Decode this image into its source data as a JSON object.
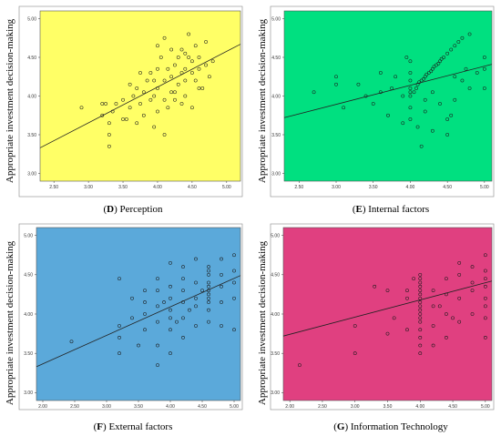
{
  "figure": {
    "panels": [
      {
        "letter": "D",
        "caption": "Perception",
        "bg": "#ffff66"
      },
      {
        "letter": "E",
        "caption": "Internal factors",
        "bg": "#00e080"
      },
      {
        "letter": "F",
        "caption": "External factors",
        "bg": "#5ba9da"
      },
      {
        "letter": "G",
        "caption": "Information Technology",
        "bg": "#e04080"
      }
    ]
  },
  "chart_data": [
    {
      "type": "scatter",
      "title": "(D) Perception",
      "xlabel": "",
      "ylabel": "Appropriate investment decision-making",
      "xlim": [
        2.3,
        5.2
      ],
      "ylim": [
        2.9,
        5.1
      ],
      "xticks": [
        "2.50",
        "3.00",
        "3.50",
        "4.00",
        "4.50",
        "5.00"
      ],
      "yticks": [
        "3.00",
        "3.50",
        "4.00",
        "4.50",
        "5.00"
      ],
      "grid": false,
      "fit_line": {
        "x": [
          2.3,
          5.2
        ],
        "y": [
          3.33,
          4.67
        ]
      },
      "points": [
        [
          2.9,
          3.85
        ],
        [
          3.2,
          3.75
        ],
        [
          3.2,
          3.9
        ],
        [
          3.25,
          3.9
        ],
        [
          3.3,
          3.35
        ],
        [
          3.3,
          3.5
        ],
        [
          3.3,
          3.65
        ],
        [
          3.35,
          3.8
        ],
        [
          3.4,
          3.9
        ],
        [
          3.5,
          3.7
        ],
        [
          3.5,
          3.95
        ],
        [
          3.55,
          3.7
        ],
        [
          3.6,
          3.85
        ],
        [
          3.65,
          4.0
        ],
        [
          3.7,
          3.65
        ],
        [
          3.7,
          4.1
        ],
        [
          3.75,
          3.9
        ],
        [
          3.8,
          3.75
        ],
        [
          3.8,
          4.05
        ],
        [
          3.85,
          4.2
        ],
        [
          3.9,
          3.95
        ],
        [
          3.9,
          4.3
        ],
        [
          3.95,
          3.6
        ],
        [
          3.95,
          4.0
        ],
        [
          4.0,
          3.8
        ],
        [
          4.0,
          4.1
        ],
        [
          4.0,
          4.35
        ],
        [
          4.05,
          4.5
        ],
        [
          4.1,
          3.5
        ],
        [
          4.1,
          3.95
        ],
        [
          4.1,
          4.2
        ],
        [
          4.15,
          3.85
        ],
        [
          4.15,
          4.35
        ],
        [
          4.2,
          4.05
        ],
        [
          4.2,
          4.25
        ],
        [
          4.25,
          3.95
        ],
        [
          4.25,
          4.4
        ],
        [
          4.3,
          4.15
        ],
        [
          4.3,
          4.5
        ],
        [
          4.35,
          3.9
        ],
        [
          4.35,
          4.3
        ],
        [
          4.35,
          4.6
        ],
        [
          4.4,
          4.0
        ],
        [
          4.4,
          4.2
        ],
        [
          4.4,
          4.35
        ],
        [
          4.45,
          4.5
        ],
        [
          4.5,
          3.85
        ],
        [
          4.5,
          4.3
        ],
        [
          4.5,
          4.45
        ],
        [
          4.55,
          4.2
        ],
        [
          4.55,
          4.65
        ],
        [
          4.6,
          4.35
        ],
        [
          4.6,
          4.5
        ],
        [
          4.65,
          4.1
        ],
        [
          4.7,
          4.4
        ],
        [
          4.7,
          4.7
        ],
        [
          4.75,
          4.25
        ],
        [
          4.8,
          4.45
        ],
        [
          3.6,
          4.15
        ],
        [
          3.75,
          4.3
        ],
        [
          4.0,
          4.65
        ],
        [
          4.1,
          4.75
        ],
        [
          4.45,
          4.8
        ],
        [
          4.2,
          4.6
        ],
        [
          4.6,
          4.1
        ],
        [
          3.95,
          4.2
        ],
        [
          4.25,
          4.05
        ],
        [
          4.4,
          4.55
        ]
      ]
    },
    {
      "type": "scatter",
      "title": "(E) Internal factors",
      "xlabel": "",
      "ylabel": "Appropriate investment decision-making",
      "xlim": [
        2.3,
        5.1
      ],
      "ylim": [
        2.9,
        5.1
      ],
      "xticks": [
        "2.50",
        "3.00",
        "3.50",
        "4.00",
        "4.50",
        "5.00"
      ],
      "yticks": [
        "3.00",
        "3.50",
        "4.00",
        "4.50",
        "5.00"
      ],
      "grid": false,
      "fit_line": {
        "x": [
          2.3,
          5.1
        ],
        "y": [
          3.72,
          4.41
        ]
      },
      "points": [
        [
          2.7,
          4.05
        ],
        [
          3.0,
          4.15
        ],
        [
          3.0,
          4.25
        ],
        [
          3.1,
          3.85
        ],
        [
          3.3,
          4.15
        ],
        [
          3.4,
          4.0
        ],
        [
          3.5,
          3.9
        ],
        [
          3.6,
          4.05
        ],
        [
          3.6,
          4.3
        ],
        [
          3.7,
          3.75
        ],
        [
          3.75,
          4.1
        ],
        [
          3.8,
          4.25
        ],
        [
          3.9,
          3.65
        ],
        [
          3.9,
          4.0
        ],
        [
          3.95,
          4.5
        ],
        [
          4.0,
          3.7
        ],
        [
          4.0,
          3.85
        ],
        [
          4.0,
          4.0
        ],
        [
          4.0,
          4.05
        ],
        [
          4.0,
          4.1
        ],
        [
          4.0,
          4.2
        ],
        [
          4.0,
          4.3
        ],
        [
          4.0,
          4.45
        ],
        [
          4.05,
          4.05
        ],
        [
          4.08,
          4.1
        ],
        [
          4.1,
          4.15
        ],
        [
          4.12,
          4.18
        ],
        [
          4.15,
          4.2
        ],
        [
          4.18,
          4.22
        ],
        [
          4.2,
          4.25
        ],
        [
          4.22,
          4.28
        ],
        [
          4.25,
          4.3
        ],
        [
          4.28,
          4.32
        ],
        [
          4.3,
          4.35
        ],
        [
          4.32,
          4.38
        ],
        [
          4.35,
          4.4
        ],
        [
          4.38,
          4.42
        ],
        [
          4.4,
          4.45
        ],
        [
          4.42,
          4.48
        ],
        [
          4.45,
          4.5
        ],
        [
          4.5,
          4.55
        ],
        [
          4.55,
          4.6
        ],
        [
          4.6,
          4.65
        ],
        [
          4.65,
          4.7
        ],
        [
          4.7,
          4.75
        ],
        [
          4.8,
          4.8
        ],
        [
          4.15,
          3.35
        ],
        [
          4.1,
          3.6
        ],
        [
          4.2,
          3.8
        ],
        [
          4.3,
          3.55
        ],
        [
          4.4,
          3.9
        ],
        [
          4.5,
          3.7
        ],
        [
          4.55,
          3.75
        ],
        [
          4.5,
          3.5
        ],
        [
          4.6,
          3.95
        ],
        [
          4.6,
          4.25
        ],
        [
          4.7,
          4.2
        ],
        [
          4.75,
          4.35
        ],
        [
          4.9,
          4.3
        ],
        [
          5.0,
          4.1
        ],
        [
          5.0,
          4.35
        ],
        [
          5.0,
          4.5
        ],
        [
          4.8,
          4.1
        ],
        [
          4.3,
          4.05
        ],
        [
          4.2,
          3.95
        ]
      ]
    },
    {
      "type": "scatter",
      "title": "(F) External factors",
      "xlabel": "",
      "ylabel": "Appropriate investment decision-making",
      "xlim": [
        1.9,
        5.1
      ],
      "ylim": [
        2.9,
        5.1
      ],
      "xticks": [
        "2.00",
        "2.50",
        "3.00",
        "3.50",
        "4.00",
        "4.50",
        "5.00"
      ],
      "yticks": [
        "3.00",
        "3.50",
        "4.00",
        "4.50",
        "5.00"
      ],
      "grid": false,
      "fit_line": {
        "x": [
          1.9,
          5.1
        ],
        "y": [
          3.33,
          4.49
        ]
      },
      "points": [
        [
          2.45,
          3.65
        ],
        [
          3.2,
          3.5
        ],
        [
          3.2,
          3.7
        ],
        [
          3.2,
          3.85
        ],
        [
          3.2,
          4.45
        ],
        [
          3.4,
          3.95
        ],
        [
          3.5,
          3.6
        ],
        [
          3.6,
          3.8
        ],
        [
          3.6,
          4.0
        ],
        [
          3.6,
          4.15
        ],
        [
          3.8,
          3.35
        ],
        [
          3.8,
          3.6
        ],
        [
          3.8,
          3.9
        ],
        [
          3.8,
          4.1
        ],
        [
          3.8,
          4.3
        ],
        [
          3.8,
          4.45
        ],
        [
          4.0,
          3.5
        ],
        [
          4.0,
          3.8
        ],
        [
          4.0,
          3.95
        ],
        [
          4.0,
          4.05
        ],
        [
          4.0,
          4.2
        ],
        [
          4.0,
          4.35
        ],
        [
          4.0,
          4.65
        ],
        [
          4.2,
          3.7
        ],
        [
          4.2,
          3.95
        ],
        [
          4.2,
          4.15
        ],
        [
          4.2,
          4.3
        ],
        [
          4.2,
          4.45
        ],
        [
          4.4,
          3.85
        ],
        [
          4.4,
          4.1
        ],
        [
          4.4,
          4.2
        ],
        [
          4.4,
          4.4
        ],
        [
          4.6,
          3.9
        ],
        [
          4.6,
          4.05
        ],
        [
          4.6,
          4.15
        ],
        [
          4.6,
          4.2
        ],
        [
          4.6,
          4.25
        ],
        [
          4.6,
          4.3
        ],
        [
          4.6,
          4.35
        ],
        [
          4.6,
          4.4
        ],
        [
          4.6,
          4.5
        ],
        [
          4.6,
          4.55
        ],
        [
          4.6,
          4.6
        ],
        [
          4.8,
          3.85
        ],
        [
          4.8,
          4.15
        ],
        [
          4.8,
          4.35
        ],
        [
          4.8,
          4.5
        ],
        [
          5.0,
          3.8
        ],
        [
          5.0,
          4.2
        ],
        [
          5.0,
          4.4
        ],
        [
          5.0,
          4.55
        ],
        [
          5.0,
          4.75
        ],
        [
          3.4,
          4.2
        ],
        [
          3.6,
          4.3
        ],
        [
          4.2,
          4.6
        ],
        [
          4.4,
          4.7
        ],
        [
          4.8,
          4.7
        ],
        [
          3.9,
          4.15
        ],
        [
          4.1,
          3.9
        ],
        [
          4.3,
          4.05
        ],
        [
          4.5,
          4.3
        ]
      ]
    },
    {
      "type": "scatter",
      "title": "(G) Information Technology",
      "xlabel": "",
      "ylabel": "Appropriate investment decision-making",
      "xlim": [
        1.9,
        5.1
      ],
      "ylim": [
        2.9,
        5.1
      ],
      "xticks": [
        "2.00",
        "2.50",
        "3.00",
        "3.50",
        "4.00",
        "4.50",
        "5.00"
      ],
      "yticks": [
        "3.00",
        "3.50",
        "4.00",
        "4.50",
        "5.00"
      ],
      "grid": false,
      "fit_line": {
        "x": [
          1.9,
          5.1
        ],
        "y": [
          3.72,
          4.42
        ]
      },
      "points": [
        [
          2.15,
          3.35
        ],
        [
          3.0,
          3.5
        ],
        [
          3.0,
          3.85
        ],
        [
          3.3,
          4.35
        ],
        [
          3.5,
          3.75
        ],
        [
          3.6,
          3.95
        ],
        [
          3.8,
          3.8
        ],
        [
          3.8,
          4.2
        ],
        [
          3.8,
          4.3
        ],
        [
          4.0,
          3.5
        ],
        [
          4.0,
          3.6
        ],
        [
          4.0,
          3.7
        ],
        [
          4.0,
          3.8
        ],
        [
          4.0,
          3.9
        ],
        [
          4.0,
          3.95
        ],
        [
          4.0,
          4.0
        ],
        [
          4.0,
          4.05
        ],
        [
          4.0,
          4.1
        ],
        [
          4.0,
          4.15
        ],
        [
          4.0,
          4.2
        ],
        [
          4.0,
          4.25
        ],
        [
          4.0,
          4.3
        ],
        [
          4.0,
          4.35
        ],
        [
          4.0,
          4.4
        ],
        [
          4.0,
          4.45
        ],
        [
          4.0,
          4.5
        ],
        [
          4.2,
          3.6
        ],
        [
          4.2,
          3.85
        ],
        [
          4.2,
          4.1
        ],
        [
          4.2,
          4.3
        ],
        [
          4.4,
          3.7
        ],
        [
          4.4,
          4.0
        ],
        [
          4.4,
          4.25
        ],
        [
          4.4,
          4.45
        ],
        [
          4.6,
          3.9
        ],
        [
          4.6,
          4.2
        ],
        [
          4.6,
          4.5
        ],
        [
          4.8,
          4.0
        ],
        [
          4.8,
          4.3
        ],
        [
          4.8,
          4.6
        ],
        [
          5.0,
          3.7
        ],
        [
          5.0,
          3.95
        ],
        [
          5.0,
          4.1
        ],
        [
          5.0,
          4.2
        ],
        [
          5.0,
          4.35
        ],
        [
          5.0,
          4.45
        ],
        [
          5.0,
          4.55
        ],
        [
          5.0,
          4.75
        ],
        [
          3.5,
          4.3
        ],
        [
          3.9,
          4.45
        ],
        [
          4.6,
          4.65
        ],
        [
          4.8,
          4.4
        ],
        [
          4.3,
          4.1
        ],
        [
          4.5,
          3.95
        ]
      ]
    }
  ]
}
